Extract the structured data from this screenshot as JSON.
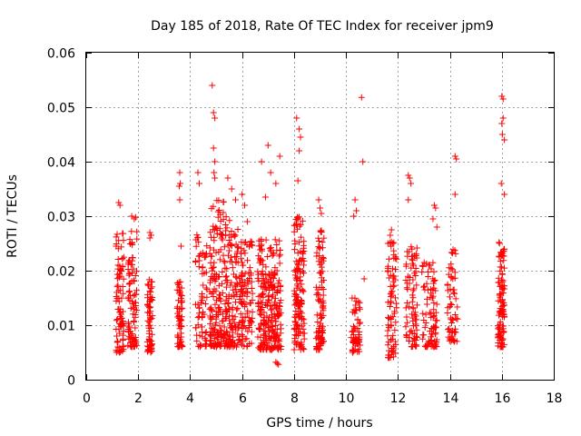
{
  "chart_data": {
    "type": "scatter",
    "title": "Day 185 of 2018, Rate Of TEC Index for receiver jpm9",
    "xlabel": "GPS time / hours",
    "ylabel": "ROTI / TECUs",
    "xlim": [
      0,
      18
    ],
    "ylim": [
      0,
      0.06
    ],
    "x_ticks": [
      0,
      2,
      4,
      6,
      8,
      10,
      12,
      14,
      16,
      18
    ],
    "x_tick_labels": [
      "0",
      "2",
      "4",
      "6",
      "8",
      "10",
      "12",
      "14",
      "16",
      "18"
    ],
    "y_ticks": [
      0,
      0.01,
      0.02,
      0.03,
      0.04,
      0.05,
      0.06
    ],
    "y_tick_labels": [
      "0",
      "0.01",
      "0.02",
      "0.03",
      "0.04",
      "0.05",
      "0.06"
    ],
    "grid": true,
    "marker": "plus",
    "color": "#ff0000",
    "clusters": [
      {
        "x": [
          1.15,
          1.45
        ],
        "y": [
          0.005,
          0.027
        ],
        "n": 90,
        "extra": [
          [
            1.25,
            0.0325
          ],
          [
            1.3,
            0.032
          ]
        ]
      },
      {
        "x": [
          1.6,
          1.95
        ],
        "y": [
          0.006,
          0.028
        ],
        "n": 90,
        "extra": [
          [
            1.75,
            0.03
          ],
          [
            1.85,
            0.0295
          ],
          [
            1.9,
            0.0298
          ]
        ]
      },
      {
        "x": [
          2.35,
          2.55
        ],
        "y": [
          0.005,
          0.019
        ],
        "n": 70,
        "extra": [
          [
            2.45,
            0.027
          ],
          [
            2.5,
            0.0265
          ],
          [
            2.45,
            0.026
          ]
        ]
      },
      {
        "x": [
          3.5,
          3.7
        ],
        "y": [
          0.006,
          0.018
        ],
        "n": 60,
        "extra": [
          [
            3.6,
            0.038
          ],
          [
            3.62,
            0.036
          ],
          [
            3.58,
            0.0355
          ],
          [
            3.6,
            0.033
          ],
          [
            3.65,
            0.0245
          ]
        ]
      },
      {
        "x": [
          4.2,
          4.65
        ],
        "y": [
          0.006,
          0.027
        ],
        "n": 70,
        "extra": [
          [
            4.3,
            0.038
          ],
          [
            4.35,
            0.036
          ]
        ]
      },
      {
        "x": [
          4.75,
          5.3
        ],
        "y": [
          0.006,
          0.033
        ],
        "n": 150,
        "extra": [
          [
            4.85,
            0.054
          ],
          [
            4.9,
            0.049
          ],
          [
            4.95,
            0.048
          ],
          [
            4.9,
            0.0425
          ],
          [
            4.95,
            0.04
          ],
          [
            4.92,
            0.038
          ],
          [
            4.95,
            0.037
          ]
        ]
      },
      {
        "x": [
          5.3,
          5.85
        ],
        "y": [
          0.006,
          0.03
        ],
        "n": 140,
        "extra": [
          [
            5.45,
            0.037
          ],
          [
            5.6,
            0.035
          ],
          [
            5.75,
            0.033
          ]
        ]
      },
      {
        "x": [
          5.85,
          6.4
        ],
        "y": [
          0.006,
          0.026
        ],
        "n": 110,
        "extra": [
          [
            6.0,
            0.034
          ],
          [
            6.1,
            0.032
          ],
          [
            6.2,
            0.029
          ]
        ]
      },
      {
        "x": [
          6.6,
          7.5
        ],
        "y": [
          0.0055,
          0.026
        ],
        "n": 260,
        "extra": [
          [
            6.75,
            0.04
          ],
          [
            7.0,
            0.043
          ],
          [
            7.1,
            0.038
          ],
          [
            7.3,
            0.036
          ],
          [
            6.9,
            0.0335
          ],
          [
            7.45,
            0.041
          ],
          [
            7.3,
            0.0032
          ],
          [
            7.35,
            0.003
          ],
          [
            7.4,
            0.0028
          ]
        ]
      },
      {
        "x": [
          8.0,
          8.4
        ],
        "y": [
          0.0055,
          0.03
        ],
        "n": 150,
        "extra": [
          [
            8.1,
            0.048
          ],
          [
            8.2,
            0.046
          ],
          [
            8.25,
            0.0445
          ],
          [
            8.2,
            0.042
          ],
          [
            8.15,
            0.0365
          ]
        ]
      },
      {
        "x": [
          8.85,
          9.15
        ],
        "y": [
          0.0055,
          0.028
        ],
        "n": 100,
        "extra": [
          [
            8.95,
            0.033
          ],
          [
            9.0,
            0.0315
          ],
          [
            9.05,
            0.0305
          ]
        ]
      },
      {
        "x": [
          10.2,
          10.55
        ],
        "y": [
          0.005,
          0.015
        ],
        "n": 60,
        "extra": [
          [
            10.35,
            0.033
          ],
          [
            10.4,
            0.031
          ],
          [
            10.3,
            0.03
          ],
          [
            10.6,
            0.0518
          ],
          [
            10.65,
            0.04
          ],
          [
            10.7,
            0.0185
          ]
        ]
      },
      {
        "x": [
          11.6,
          11.95
        ],
        "y": [
          0.004,
          0.027
        ],
        "n": 80,
        "extra": [
          [
            11.75,
            0.0275
          ],
          [
            11.8,
            0.025
          ]
        ]
      },
      {
        "x": [
          12.3,
          12.75
        ],
        "y": [
          0.006,
          0.025
        ],
        "n": 80,
        "extra": [
          [
            12.4,
            0.0375
          ],
          [
            12.45,
            0.037
          ],
          [
            12.5,
            0.036
          ],
          [
            12.4,
            0.033
          ]
        ]
      },
      {
        "x": [
          12.9,
          13.5
        ],
        "y": [
          0.006,
          0.022
        ],
        "n": 90,
        "extra": [
          [
            13.4,
            0.032
          ],
          [
            13.45,
            0.0315
          ],
          [
            13.35,
            0.0295
          ],
          [
            13.5,
            0.028
          ]
        ]
      },
      {
        "x": [
          13.9,
          14.3
        ],
        "y": [
          0.007,
          0.024
        ],
        "n": 60,
        "extra": [
          [
            14.2,
            0.041
          ],
          [
            14.25,
            0.0405
          ],
          [
            14.2,
            0.034
          ]
        ]
      },
      {
        "x": [
          15.85,
          16.1
        ],
        "y": [
          0.006,
          0.026
        ],
        "n": 110,
        "extra": [
          [
            16.0,
            0.052
          ],
          [
            16.05,
            0.0515
          ],
          [
            16.05,
            0.048
          ],
          [
            16.0,
            0.047
          ],
          [
            16.02,
            0.045
          ],
          [
            16.1,
            0.044
          ],
          [
            15.98,
            0.036
          ],
          [
            16.1,
            0.034
          ]
        ]
      }
    ]
  }
}
